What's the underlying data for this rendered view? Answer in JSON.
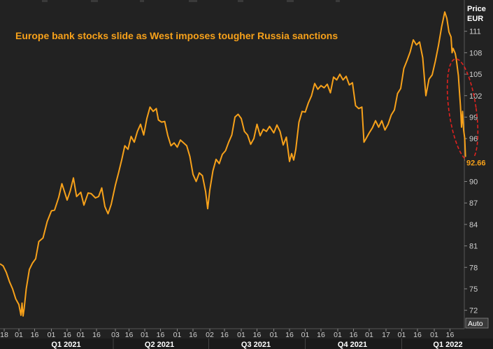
{
  "chart_data": {
    "type": "line",
    "title": "Europe bank stocks slide as West imposes tougher Russia sanctions",
    "y_axis_title": [
      "Price",
      "EUR"
    ],
    "y_ticks": [
      72,
      75,
      78,
      81,
      84,
      87,
      90,
      93,
      96,
      99,
      102,
      105,
      108,
      111
    ],
    "ylim": [
      70.5,
      114
    ],
    "last_value": "92.66",
    "auto_label": "Auto",
    "x_tick_labels": [
      {
        "label": "18",
        "x": "2020-12-18"
      },
      {
        "label": "01",
        "x": "2021-01-01"
      },
      {
        "label": "16",
        "x": "2021-01-16"
      },
      {
        "label": "01",
        "x": "2021-02-01"
      },
      {
        "label": "16",
        "x": "2021-02-16"
      },
      {
        "label": "01",
        "x": "2021-03-01"
      },
      {
        "label": "16",
        "x": "2021-03-16"
      },
      {
        "label": "03",
        "x": "2021-04-03"
      },
      {
        "label": "16",
        "x": "2021-04-16"
      },
      {
        "label": "01",
        "x": "2021-05-01"
      },
      {
        "label": "16",
        "x": "2021-05-16"
      },
      {
        "label": "01",
        "x": "2021-06-01"
      },
      {
        "label": "16",
        "x": "2021-06-16"
      },
      {
        "label": "02",
        "x": "2021-07-02"
      },
      {
        "label": "16",
        "x": "2021-07-16"
      },
      {
        "label": "01",
        "x": "2021-08-01"
      },
      {
        "label": "16",
        "x": "2021-08-16"
      },
      {
        "label": "01",
        "x": "2021-09-01"
      },
      {
        "label": "16",
        "x": "2021-09-16"
      },
      {
        "label": "01",
        "x": "2021-10-01"
      },
      {
        "label": "16",
        "x": "2021-10-16"
      },
      {
        "label": "01",
        "x": "2021-11-01"
      },
      {
        "label": "16",
        "x": "2021-11-16"
      },
      {
        "label": "01",
        "x": "2021-12-01"
      },
      {
        "label": "17",
        "x": "2021-12-17"
      },
      {
        "label": "01",
        "x": "2022-01-01"
      },
      {
        "label": "16",
        "x": "2022-01-16"
      },
      {
        "label": "01",
        "x": "2022-02-01"
      },
      {
        "label": "16",
        "x": "2022-02-16"
      }
    ],
    "quarter_labels": [
      {
        "label": "Q1 2021",
        "x": "2021-02-15"
      },
      {
        "label": "Q2 2021",
        "x": "2021-05-15"
      },
      {
        "label": "Q3 2021",
        "x": "2021-08-15"
      },
      {
        "label": "Q4 2021",
        "x": "2021-11-15"
      },
      {
        "label": "Q1 2022",
        "x": "2022-02-14"
      }
    ],
    "xlim": [
      "2020-12-14",
      "2022-02-24"
    ],
    "series": [
      {
        "color": "#f7a11a",
        "points": [
          [
            "2020-12-14",
            78.5
          ],
          [
            "2020-12-17",
            78.2
          ],
          [
            "2020-12-20",
            77.3
          ],
          [
            "2020-12-23",
            76.0
          ],
          [
            "2020-12-26",
            75.0
          ],
          [
            "2020-12-29",
            73.6
          ],
          [
            "2021-01-01",
            72.8
          ],
          [
            "2021-01-03",
            71.3
          ],
          [
            "2021-01-04",
            73.0
          ],
          [
            "2021-01-05",
            71.2
          ],
          [
            "2021-01-06",
            72.2
          ],
          [
            "2021-01-08",
            75.0
          ],
          [
            "2021-01-11",
            77.7
          ],
          [
            "2021-01-14",
            78.6
          ],
          [
            "2021-01-17",
            79.2
          ],
          [
            "2021-01-20",
            81.6
          ],
          [
            "2021-01-24",
            82.1
          ],
          [
            "2021-01-28",
            84.4
          ],
          [
            "2021-02-01",
            85.9
          ],
          [
            "2021-02-04",
            86.0
          ],
          [
            "2021-02-08",
            87.8
          ],
          [
            "2021-02-11",
            89.7
          ],
          [
            "2021-02-13",
            88.8
          ],
          [
            "2021-02-16",
            87.4
          ],
          [
            "2021-02-19",
            88.7
          ],
          [
            "2021-02-22",
            90.5
          ],
          [
            "2021-02-25",
            87.9
          ],
          [
            "2021-03-01",
            88.5
          ],
          [
            "2021-03-04",
            86.7
          ],
          [
            "2021-03-08",
            88.4
          ],
          [
            "2021-03-11",
            88.3
          ],
          [
            "2021-03-15",
            87.7
          ],
          [
            "2021-03-18",
            87.9
          ],
          [
            "2021-03-21",
            89.1
          ],
          [
            "2021-03-24",
            86.5
          ],
          [
            "2021-03-27",
            85.5
          ],
          [
            "2021-03-30",
            86.8
          ],
          [
            "2021-04-03",
            89.5
          ],
          [
            "2021-04-06",
            91.2
          ],
          [
            "2021-04-09",
            93.0
          ],
          [
            "2021-04-12",
            95.0
          ],
          [
            "2021-04-15",
            94.5
          ],
          [
            "2021-04-18",
            96.3
          ],
          [
            "2021-04-21",
            95.5
          ],
          [
            "2021-04-24",
            97.0
          ],
          [
            "2021-04-27",
            98.0
          ],
          [
            "2021-04-30",
            96.5
          ],
          [
            "2021-05-03",
            98.8
          ],
          [
            "2021-05-06",
            100.4
          ],
          [
            "2021-05-09",
            99.8
          ],
          [
            "2021-05-12",
            100.2
          ],
          [
            "2021-05-14",
            98.6
          ],
          [
            "2021-05-17",
            98.3
          ],
          [
            "2021-05-20",
            98.4
          ],
          [
            "2021-05-23",
            96.4
          ],
          [
            "2021-05-26",
            95.0
          ],
          [
            "2021-05-29",
            95.4
          ],
          [
            "2021-06-01",
            94.8
          ],
          [
            "2021-06-04",
            95.8
          ],
          [
            "2021-06-07",
            95.4
          ],
          [
            "2021-06-10",
            95.0
          ],
          [
            "2021-06-13",
            93.5
          ],
          [
            "2021-06-16",
            91.0
          ],
          [
            "2021-06-19",
            90.0
          ],
          [
            "2021-06-22",
            91.2
          ],
          [
            "2021-06-25",
            90.8
          ],
          [
            "2021-06-28",
            88.6
          ],
          [
            "2021-06-30",
            86.2
          ],
          [
            "2021-07-02",
            88.8
          ],
          [
            "2021-07-05",
            91.5
          ],
          [
            "2021-07-08",
            93.1
          ],
          [
            "2021-07-11",
            92.5
          ],
          [
            "2021-07-14",
            93.8
          ],
          [
            "2021-07-17",
            94.3
          ],
          [
            "2021-07-20",
            95.5
          ],
          [
            "2021-07-23",
            96.5
          ],
          [
            "2021-07-26",
            99.0
          ],
          [
            "2021-07-29",
            99.4
          ],
          [
            "2021-08-01",
            98.8
          ],
          [
            "2021-08-04",
            97.0
          ],
          [
            "2021-08-07",
            96.5
          ],
          [
            "2021-08-10",
            95.2
          ],
          [
            "2021-08-13",
            96.0
          ],
          [
            "2021-08-16",
            98.0
          ],
          [
            "2021-08-19",
            96.4
          ],
          [
            "2021-08-22",
            97.3
          ],
          [
            "2021-08-25",
            97.0
          ],
          [
            "2021-08-28",
            97.7
          ],
          [
            "2021-09-01",
            96.8
          ],
          [
            "2021-09-04",
            97.9
          ],
          [
            "2021-09-07",
            97.0
          ],
          [
            "2021-09-10",
            95.1
          ],
          [
            "2021-09-13",
            96.2
          ],
          [
            "2021-09-16",
            92.8
          ],
          [
            "2021-09-18",
            93.9
          ],
          [
            "2021-09-20",
            93.0
          ],
          [
            "2021-09-22",
            94.5
          ],
          [
            "2021-09-25",
            98.3
          ],
          [
            "2021-09-28",
            99.8
          ],
          [
            "2021-10-01",
            99.7
          ],
          [
            "2021-10-04",
            101.0
          ],
          [
            "2021-10-07",
            102.0
          ],
          [
            "2021-10-10",
            103.7
          ],
          [
            "2021-10-13",
            102.9
          ],
          [
            "2021-10-16",
            103.4
          ],
          [
            "2021-10-19",
            103.1
          ],
          [
            "2021-10-22",
            103.6
          ],
          [
            "2021-10-25",
            102.4
          ],
          [
            "2021-10-28",
            104.6
          ],
          [
            "2021-10-31",
            104.2
          ],
          [
            "2021-11-03",
            105.0
          ],
          [
            "2021-11-06",
            104.2
          ],
          [
            "2021-11-09",
            104.7
          ],
          [
            "2021-11-12",
            103.5
          ],
          [
            "2021-11-15",
            103.8
          ],
          [
            "2021-11-18",
            100.6
          ],
          [
            "2021-11-21",
            100.2
          ],
          [
            "2021-11-24",
            100.4
          ],
          [
            "2021-11-26",
            95.5
          ],
          [
            "2021-11-28",
            96.0
          ],
          [
            "2021-12-01",
            96.8
          ],
          [
            "2021-12-04",
            97.5
          ],
          [
            "2021-12-07",
            98.5
          ],
          [
            "2021-12-10",
            97.6
          ],
          [
            "2021-12-13",
            98.5
          ],
          [
            "2021-12-16",
            97.2
          ],
          [
            "2021-12-19",
            98.0
          ],
          [
            "2021-12-22",
            99.3
          ],
          [
            "2021-12-25",
            100.0
          ],
          [
            "2021-12-28",
            102.3
          ],
          [
            "2021-12-31",
            103.0
          ],
          [
            "2022-01-03",
            105.8
          ],
          [
            "2022-01-06",
            106.9
          ],
          [
            "2022-01-09",
            108.1
          ],
          [
            "2022-01-12",
            109.8
          ],
          [
            "2022-01-15",
            109.1
          ],
          [
            "2022-01-18",
            109.5
          ],
          [
            "2022-01-21",
            107.3
          ],
          [
            "2022-01-24",
            102.0
          ],
          [
            "2022-01-27",
            104.3
          ],
          [
            "2022-01-30",
            104.9
          ],
          [
            "2022-02-02",
            106.8
          ],
          [
            "2022-02-05",
            109.0
          ],
          [
            "2022-02-08",
            111.6
          ],
          [
            "2022-02-11",
            113.7
          ],
          [
            "2022-02-13",
            112.8
          ],
          [
            "2022-02-15",
            110.9
          ],
          [
            "2022-02-17",
            110.2
          ],
          [
            "2022-02-18",
            108.0
          ],
          [
            "2022-02-19",
            108.6
          ],
          [
            "2022-02-21",
            107.9
          ],
          [
            "2022-02-22",
            107.1
          ],
          [
            "2022-02-24",
            104.8
          ],
          [
            "2022-02-25",
            102.6
          ],
          [
            "2022-02-26",
            100.5
          ],
          [
            "2022-02-27",
            97.6
          ],
          [
            "2022-02-28",
            99.8
          ],
          [
            "2022-03-01",
            97.2
          ],
          [
            "2022-03-02",
            96.1
          ],
          [
            "2022-03-03",
            92.66
          ]
        ]
      }
    ],
    "annotation": {
      "type": "ellipse",
      "color": "#e0221f",
      "style": "dashed",
      "center": [
        "2022-02-28",
        100.0
      ],
      "x_radius_days": 13,
      "y_radius": 7.2
    }
  }
}
